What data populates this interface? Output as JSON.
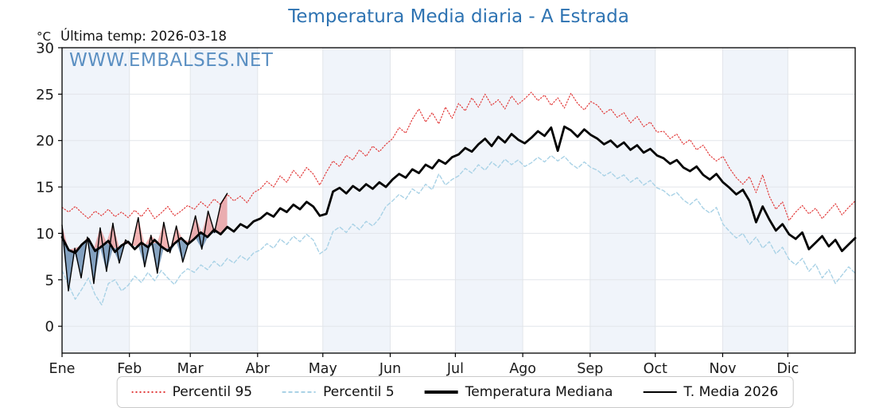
{
  "page": {
    "watermark": "WWW.EMBALSES.NET"
  },
  "chart_data": {
    "type": "line",
    "title": "Temperatura Media diaria - A Estrada",
    "annotation": "Última temp: 2026-03-18",
    "ylabel": "°C",
    "xlabel": "",
    "x_tick_labels": [
      "Ene",
      "Feb",
      "Mar",
      "Abr",
      "May",
      "Jun",
      "Jul",
      "Ago",
      "Sep",
      "Oct",
      "Nov",
      "Dic"
    ],
    "month_days": [
      31,
      28,
      31,
      30,
      31,
      30,
      31,
      31,
      30,
      31,
      30,
      31
    ],
    "yticks": [
      0,
      5,
      10,
      15,
      20,
      25,
      30
    ],
    "ylim": [
      -2.9,
      30
    ],
    "grid": true,
    "legend_position": "bottom",
    "colors": {
      "title": "#2e73b2",
      "watermark": "#3a79b6",
      "band": "#f0f4fa",
      "grid": "#e2e5ea",
      "spine": "#000000",
      "tick_text": "#1a1a1a"
    },
    "fills": {
      "current": "T. Media 2026",
      "median": "Temperatura Mediana",
      "above_color": "rgba(226,75,75,0.42)",
      "below_color": "rgba(70,115,160,0.65)"
    },
    "series": [
      {
        "name": "Percentil 95",
        "color": "#e23b3b",
        "dash": "1.4 2.4",
        "width": 1.2,
        "day_start": 0,
        "day_end": 365,
        "values": [
          12.8,
          12.3,
          12.9,
          12.2,
          11.6,
          12.4,
          11.9,
          12.6,
          11.8,
          12.3,
          11.7,
          12.5,
          11.8,
          12.7,
          11.6,
          12.2,
          12.9,
          11.9,
          12.4,
          13.0,
          12.6,
          13.4,
          12.8,
          13.7,
          13.1,
          14.2,
          13.5,
          14.0,
          13.3,
          14.4,
          14.8,
          15.6,
          15.0,
          16.2,
          15.5,
          16.8,
          16.0,
          17.1,
          16.4,
          15.2,
          16.6,
          17.8,
          17.2,
          18.4,
          17.9,
          19.0,
          18.3,
          19.4,
          18.8,
          19.6,
          20.2,
          21.4,
          20.8,
          22.3,
          23.4,
          22.0,
          23.0,
          21.8,
          23.6,
          22.4,
          24.0,
          23.2,
          24.6,
          23.6,
          25.0,
          23.8,
          24.4,
          23.4,
          24.8,
          23.9,
          24.5,
          25.2,
          24.3,
          24.9,
          23.8,
          24.6,
          23.5,
          25.1,
          24.0,
          23.3,
          24.2,
          23.8,
          22.9,
          23.4,
          22.5,
          23.0,
          21.9,
          22.6,
          21.5,
          22.0,
          20.9,
          21.0,
          20.2,
          20.7,
          19.6,
          20.1,
          19.0,
          19.5,
          18.4,
          17.8,
          18.3,
          17.0,
          16.0,
          15.3,
          16.1,
          14.4,
          16.3,
          14.0,
          12.6,
          13.4,
          11.4,
          12.3,
          13.0,
          12.1,
          12.7,
          11.6,
          12.4,
          13.2,
          12.0,
          12.8,
          13.5
        ]
      },
      {
        "name": "Percentil 5",
        "color": "#a9d2e6",
        "dash": "4.5 3",
        "width": 1.4,
        "day_start": 0,
        "day_end": 365,
        "values": [
          6.0,
          4.4,
          2.9,
          4.0,
          5.2,
          3.4,
          2.3,
          4.6,
          5.0,
          3.8,
          4.4,
          5.4,
          4.7,
          5.8,
          4.9,
          6.0,
          5.2,
          4.5,
          5.6,
          6.2,
          5.8,
          6.6,
          6.1,
          7.0,
          6.4,
          7.3,
          6.8,
          7.6,
          7.1,
          7.9,
          8.2,
          8.9,
          8.4,
          9.4,
          8.8,
          9.7,
          9.1,
          9.9,
          9.3,
          7.8,
          8.3,
          10.2,
          10.7,
          10.1,
          11.0,
          10.4,
          11.3,
          10.8,
          11.6,
          12.9,
          13.5,
          14.2,
          13.7,
          14.8,
          14.3,
          15.3,
          14.7,
          16.4,
          15.2,
          15.8,
          16.2,
          17.0,
          16.5,
          17.4,
          16.8,
          17.7,
          17.1,
          18.0,
          17.4,
          17.9,
          17.2,
          17.6,
          18.2,
          17.7,
          18.4,
          17.8,
          18.3,
          17.5,
          17.0,
          17.7,
          17.1,
          16.8,
          16.2,
          16.6,
          15.9,
          16.3,
          15.5,
          16.0,
          15.2,
          15.7,
          14.9,
          14.6,
          14.0,
          14.4,
          13.6,
          13.1,
          13.7,
          12.7,
          12.2,
          12.8,
          11.0,
          10.2,
          9.5,
          10.0,
          8.8,
          9.6,
          8.4,
          9.1,
          7.8,
          8.5,
          7.2,
          6.6,
          7.3,
          5.9,
          6.7,
          5.2,
          6.1,
          4.6,
          5.5,
          6.4,
          5.7
        ]
      },
      {
        "name": "Temperatura Mediana",
        "color": "#000000",
        "dash": null,
        "width": 2.8,
        "day_start": 0,
        "day_end": 365,
        "values": [
          9.6,
          8.2,
          7.9,
          8.8,
          9.4,
          8.1,
          8.6,
          9.2,
          8.0,
          8.7,
          9.1,
          8.3,
          9.0,
          8.5,
          9.3,
          8.6,
          8.1,
          8.9,
          9.5,
          8.8,
          9.4,
          10.1,
          9.6,
          10.4,
          9.9,
          10.7,
          10.2,
          11.0,
          10.6,
          11.3,
          11.6,
          12.2,
          11.8,
          12.7,
          12.3,
          13.1,
          12.6,
          13.4,
          12.9,
          11.9,
          12.1,
          14.5,
          14.9,
          14.3,
          15.1,
          14.6,
          15.3,
          14.8,
          15.5,
          15.0,
          15.8,
          16.4,
          16.0,
          16.9,
          16.5,
          17.4,
          17.0,
          17.9,
          17.5,
          18.2,
          18.5,
          19.2,
          18.8,
          19.6,
          20.2,
          19.4,
          20.4,
          19.8,
          20.7,
          20.1,
          19.7,
          20.3,
          21.0,
          20.5,
          21.4,
          18.9,
          21.5,
          21.1,
          20.4,
          21.2,
          20.6,
          20.2,
          19.6,
          20.0,
          19.3,
          19.8,
          19.0,
          19.5,
          18.7,
          19.1,
          18.4,
          18.1,
          17.5,
          17.9,
          17.1,
          16.7,
          17.2,
          16.3,
          15.8,
          16.4,
          15.5,
          14.9,
          14.2,
          14.7,
          13.5,
          11.2,
          12.9,
          11.5,
          10.3,
          11.0,
          9.9,
          9.4,
          10.1,
          8.3,
          9.0,
          9.7,
          8.6,
          9.3,
          8.1,
          8.8,
          9.5
        ]
      },
      {
        "name": "T. Media 2026",
        "color": "#000000",
        "dash": null,
        "width": 1.4,
        "day_start": 0,
        "day_end": 76,
        "values": [
          10.9,
          3.8,
          8.4,
          5.2,
          9.6,
          4.6,
          10.6,
          5.9,
          11.1,
          6.8,
          9.3,
          8.6,
          11.7,
          6.4,
          9.8,
          5.7,
          11.2,
          7.9,
          10.8,
          6.9,
          9.2,
          11.9,
          8.3,
          12.4,
          10.1,
          13.2,
          14.3
        ]
      }
    ]
  }
}
